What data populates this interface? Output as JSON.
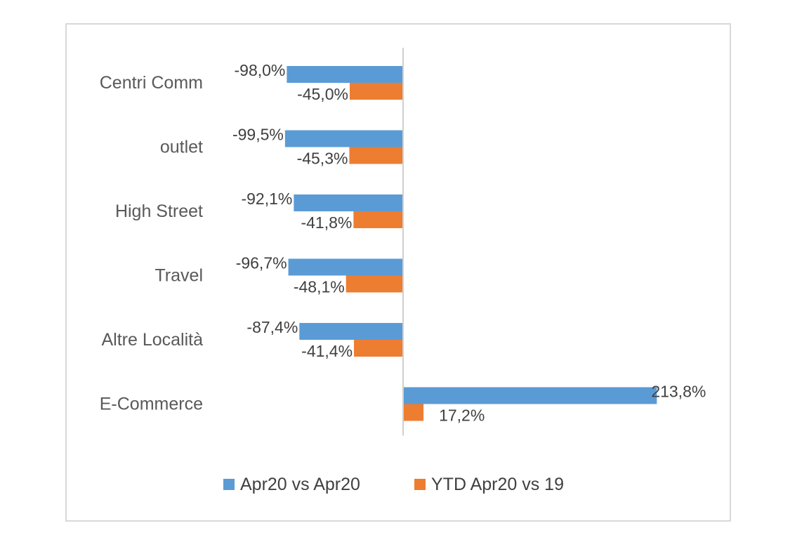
{
  "chart_data": {
    "type": "bar",
    "orientation": "horizontal",
    "categories": [
      "Centri Comm",
      "outlet",
      "High Street",
      "Travel",
      "Altre Località",
      "E-Commerce"
    ],
    "series": [
      {
        "name": "Apr20 vs Apr20",
        "color": "#5b9bd5",
        "values": [
          -98.0,
          -99.5,
          -92.1,
          -96.7,
          -87.4,
          213.8
        ],
        "labels": [
          "-98,0%",
          "-99,5%",
          "-92,1%",
          "-96,7%",
          "-87,4%",
          "213,8%"
        ]
      },
      {
        "name": "YTD Apr20 vs 19",
        "color": "#ed7d31",
        "values": [
          -45.0,
          -45.3,
          -41.8,
          -48.1,
          -41.4,
          17.2
        ],
        "labels": [
          "-45,0%",
          "-45,3%",
          "-41,8%",
          "-48,1%",
          "-41,4%",
          "17,2%"
        ]
      }
    ],
    "legend": "bottom",
    "grid": false
  }
}
